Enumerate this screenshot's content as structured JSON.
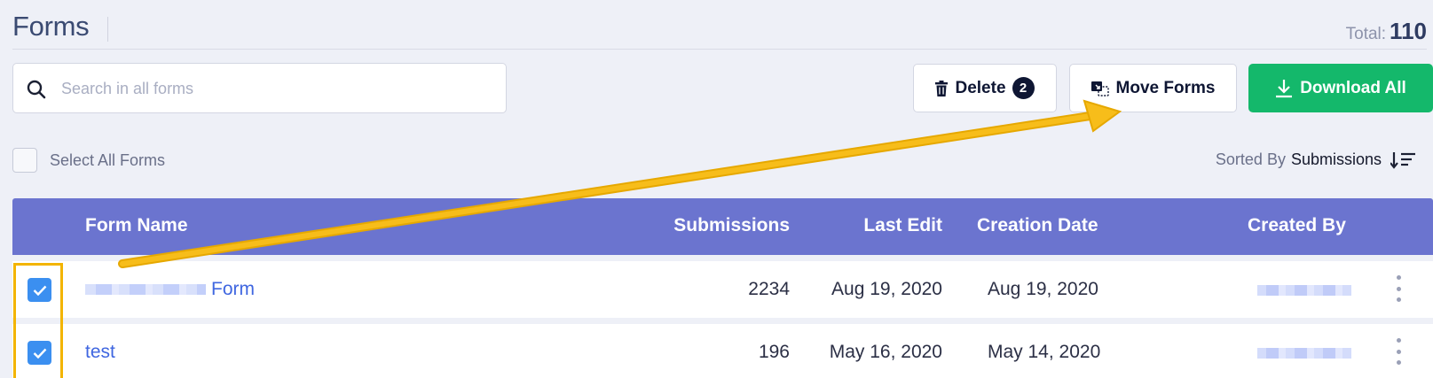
{
  "header": {
    "title": "Forms",
    "total_label": "Total:",
    "total_value": "110"
  },
  "search": {
    "placeholder": "Search in all forms",
    "value": ""
  },
  "toolbar": {
    "delete_label": "Delete",
    "delete_count": "2",
    "move_label": "Move Forms",
    "download_label": "Download All",
    "download_color": "#14b86b"
  },
  "select_all": {
    "label": "Select All Forms",
    "checked": false
  },
  "sort": {
    "prefix": "Sorted By",
    "field": "Submissions"
  },
  "table": {
    "columns": [
      "Form Name",
      "Submissions",
      "Last Edit",
      "Creation Date",
      "Created By"
    ],
    "header_color": "#6b74cf",
    "rows": [
      {
        "name": "Form",
        "name_redacted": true,
        "submissions": "2234",
        "last_edit": "Aug 19, 2020",
        "created": "Aug 19, 2020",
        "created_by_redacted": true,
        "checked": true
      },
      {
        "name": "test",
        "name_redacted": false,
        "submissions": "196",
        "last_edit": "May 16, 2020",
        "created": "May 14, 2020",
        "created_by_redacted": true,
        "checked": true
      }
    ]
  },
  "annotation": {
    "color": "#f3b400",
    "icons": [
      "arrow-annotation",
      "highlight-box"
    ]
  }
}
